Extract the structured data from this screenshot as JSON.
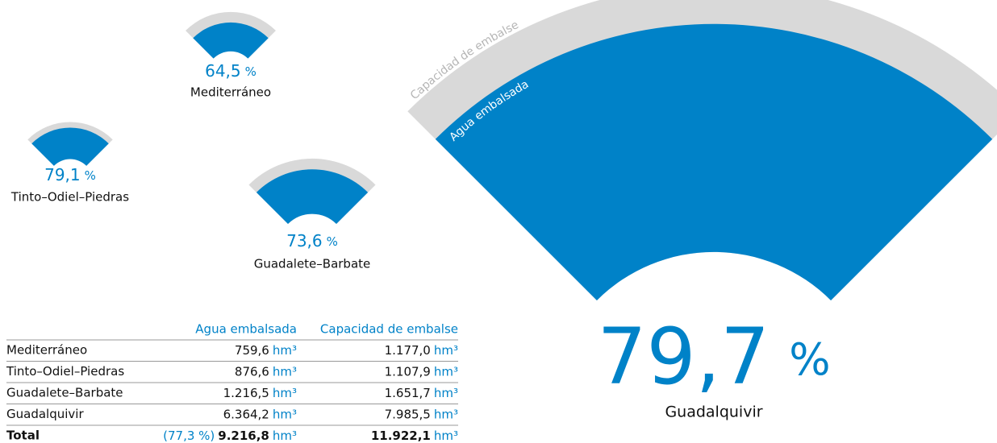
{
  "chart_data": {
    "type": "fan",
    "categories": [
      "Mediterráneo",
      "Tinto–Odiel–Piedras",
      "Guadalete–Barbate",
      "Guadalquivir"
    ],
    "values": [
      64.5,
      79.1,
      73.6,
      79.7
    ],
    "value_labels": [
      "64,5",
      "79,1",
      "73,6",
      "79,7"
    ],
    "unit": "%",
    "capacity_label": "Capacidad de embalse",
    "stored_label": "Agua embalsada",
    "colors": {
      "stored": "#0082c8",
      "capacity": "#d9d9d9"
    }
  },
  "table": {
    "headers": [
      "Agua embalsada",
      "Capacidad de embalse"
    ],
    "unit": "hm³",
    "rows": [
      {
        "name": "Mediterráneo",
        "stored": "759,6",
        "capacity": "1.177,0"
      },
      {
        "name": "Tinto–Odiel–Piedras",
        "stored": "876,6",
        "capacity": "1.107,9"
      },
      {
        "name": "Guadalete–Barbate",
        "stored": "1.216,5",
        "capacity": "1.651,7"
      },
      {
        "name": "Guadalquivir",
        "stored": "6.364,2",
        "capacity": "7.985,5"
      }
    ],
    "total": {
      "name": "Total",
      "percent": "(77,3 %)",
      "stored": "9.216,8",
      "capacity": "11.922,1"
    }
  }
}
